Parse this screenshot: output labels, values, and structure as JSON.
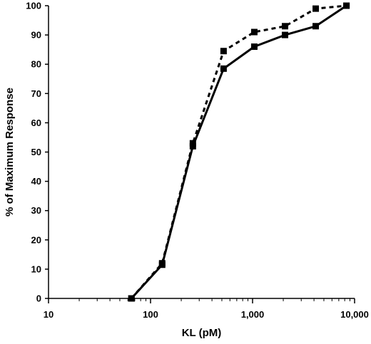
{
  "chart_data": {
    "type": "line",
    "xlabel": "KL (pM)",
    "ylabel": "% of Maximum Response",
    "xscale": "log",
    "xlim": [
      10,
      10000
    ],
    "ylim": [
      0,
      100
    ],
    "x_ticks": [
      10,
      100,
      1000,
      10000
    ],
    "x_tick_labels": [
      "10",
      "100",
      "1,000",
      "10,000"
    ],
    "y_ticks": [
      0,
      10,
      20,
      30,
      40,
      50,
      60,
      70,
      80,
      90,
      100
    ],
    "y_tick_labels": [
      "0",
      "10",
      "20",
      "30",
      "40",
      "50",
      "60",
      "70",
      "80",
      "90",
      "100"
    ],
    "grid": false,
    "legend": "none",
    "series": [
      {
        "line_style": "solid",
        "color": "#000000",
        "marker": "square",
        "x": [
          65,
          130,
          260,
          520,
          1040,
          2080,
          4160,
          8320
        ],
        "values": [
          0,
          11.5,
          52,
          78.5,
          86,
          90,
          93,
          100
        ]
      },
      {
        "line_style": "dashed",
        "color": "#000000",
        "marker": "square",
        "x": [
          65,
          130,
          260,
          520,
          1040,
          2080,
          4160,
          8320
        ],
        "values": [
          0,
          12,
          53,
          84.5,
          91,
          93,
          99,
          100
        ]
      }
    ]
  }
}
